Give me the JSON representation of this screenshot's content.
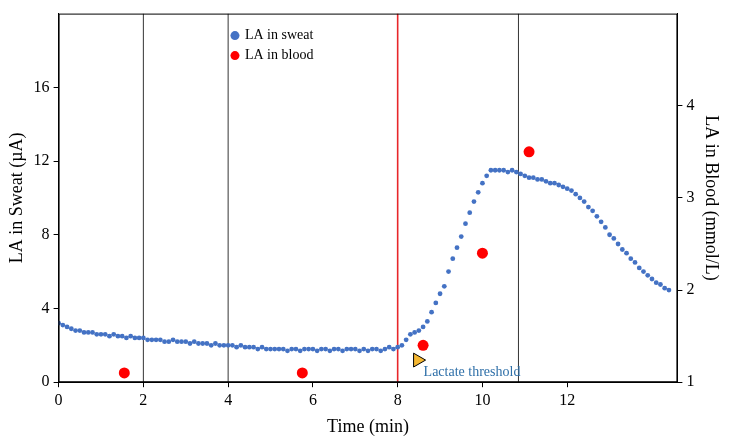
{
  "chart_data": {
    "type": "scatter",
    "x_label": "Time (min)",
    "y_label": "LA in Sweat (µA)",
    "y2_label": "LA in Blood (mmol/L)",
    "xlim": [
      0,
      14.6
    ],
    "xticks": [
      0,
      2,
      4,
      6,
      8,
      10,
      12
    ],
    "ylim": [
      0,
      20
    ],
    "yticks": [
      0,
      4,
      8,
      12,
      16
    ],
    "y2lim": [
      1,
      5
    ],
    "y2ticks": [
      1,
      2,
      3,
      4
    ],
    "grid": false,
    "legend": "top",
    "series": [
      {
        "name": "LA in sweat",
        "color": "#4472c4",
        "marker": "circle",
        "x": [
          0.0,
          0.1,
          0.2,
          0.3,
          0.4,
          0.5,
          0.6,
          0.7,
          0.8,
          0.9,
          1.0,
          1.1,
          1.2,
          1.3,
          1.4,
          1.5,
          1.6,
          1.7,
          1.8,
          1.9,
          2.0,
          2.1,
          2.2,
          2.3,
          2.4,
          2.5,
          2.6,
          2.7,
          2.8,
          2.9,
          3.0,
          3.1,
          3.2,
          3.3,
          3.4,
          3.5,
          3.6,
          3.7,
          3.8,
          3.9,
          4.0,
          4.1,
          4.2,
          4.3,
          4.4,
          4.5,
          4.6,
          4.7,
          4.8,
          4.9,
          5.0,
          5.1,
          5.2,
          5.3,
          5.4,
          5.5,
          5.6,
          5.7,
          5.8,
          5.9,
          6.0,
          6.1,
          6.2,
          6.3,
          6.4,
          6.5,
          6.6,
          6.7,
          6.8,
          6.9,
          7.0,
          7.1,
          7.2,
          7.3,
          7.4,
          7.5,
          7.6,
          7.7,
          7.8,
          7.9,
          8.0,
          8.1,
          8.2,
          8.3,
          8.4,
          8.5,
          8.6,
          8.7,
          8.8,
          8.9,
          9.0,
          9.1,
          9.2,
          9.3,
          9.4,
          9.5,
          9.6,
          9.7,
          9.8,
          9.9,
          10.0,
          10.1,
          10.2,
          10.3,
          10.4,
          10.5,
          10.6,
          10.7,
          10.8,
          10.9,
          11.0,
          11.1,
          11.2,
          11.3,
          11.4,
          11.5,
          11.6,
          11.7,
          11.8,
          11.9,
          12.0,
          12.1,
          12.2,
          12.3,
          12.4,
          12.5,
          12.6,
          12.7,
          12.8,
          12.9,
          13.0,
          13.1,
          13.2,
          13.3,
          13.4,
          13.5,
          13.6,
          13.7,
          13.8,
          13.9,
          14.0,
          14.1,
          14.2,
          14.3,
          14.4
        ],
        "values": [
          3.2,
          3.1,
          3.0,
          2.9,
          2.8,
          2.8,
          2.7,
          2.7,
          2.7,
          2.6,
          2.6,
          2.6,
          2.5,
          2.6,
          2.5,
          2.5,
          2.4,
          2.5,
          2.4,
          2.4,
          2.4,
          2.3,
          2.3,
          2.3,
          2.3,
          2.2,
          2.2,
          2.3,
          2.2,
          2.2,
          2.2,
          2.1,
          2.2,
          2.1,
          2.1,
          2.1,
          2.0,
          2.1,
          2.0,
          2.0,
          2.0,
          2.0,
          1.9,
          2.0,
          1.9,
          1.9,
          1.9,
          1.8,
          1.9,
          1.8,
          1.8,
          1.8,
          1.8,
          1.8,
          1.7,
          1.8,
          1.8,
          1.7,
          1.8,
          1.8,
          1.8,
          1.7,
          1.8,
          1.8,
          1.7,
          1.8,
          1.8,
          1.7,
          1.8,
          1.8,
          1.8,
          1.7,
          1.8,
          1.7,
          1.8,
          1.8,
          1.7,
          1.8,
          1.9,
          1.8,
          1.9,
          2.0,
          2.3,
          2.6,
          2.7,
          2.8,
          3.0,
          3.3,
          3.8,
          4.3,
          4.8,
          5.2,
          6.0,
          6.7,
          7.3,
          7.9,
          8.6,
          9.2,
          9.8,
          10.3,
          10.8,
          11.2,
          11.5,
          11.5,
          11.5,
          11.5,
          11.4,
          11.5,
          11.4,
          11.3,
          11.2,
          11.1,
          11.1,
          11.0,
          11.0,
          10.9,
          10.8,
          10.8,
          10.7,
          10.6,
          10.5,
          10.4,
          10.2,
          10.0,
          9.8,
          9.5,
          9.3,
          9.0,
          8.7,
          8.4,
          8.0,
          7.8,
          7.5,
          7.2,
          7.0,
          6.7,
          6.5,
          6.2,
          6.0,
          5.8,
          5.6,
          5.4,
          5.3,
          5.1,
          5.0
        ]
      },
      {
        "name": "LA in blood",
        "color": "#ff0000",
        "marker": "circle",
        "axis": "y2",
        "x": [
          1.55,
          5.75,
          8.6,
          10.0,
          11.1
        ],
        "values": [
          1.1,
          1.1,
          1.4,
          2.4,
          3.5
        ]
      }
    ],
    "annotations": [
      {
        "text": "Lactate threshold",
        "x": 8.47,
        "y": 1.2,
        "marker": "triangle",
        "color": "#f5b731"
      }
    ],
    "vertical_lines": [
      {
        "x": 2,
        "color": "#000000"
      },
      {
        "x": 4,
        "color": "#000000"
      },
      {
        "x": 8,
        "color": "#e8262a"
      },
      {
        "x": 10.85,
        "color": "#000000"
      }
    ]
  }
}
